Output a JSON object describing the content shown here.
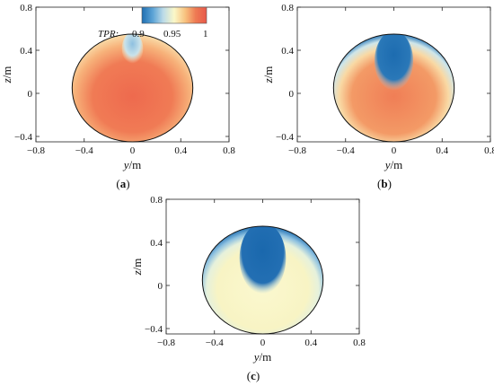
{
  "colorbar": {
    "title": "TPR:",
    "tick_labels": [
      "0.9",
      "0.95",
      "1"
    ],
    "colors": [
      "#1f6fb2",
      "#5da4d6",
      "#bcdbe8",
      "#fbf8c8",
      "#f8c27f",
      "#ee7b53",
      "#e8584a"
    ]
  },
  "chart_data": [
    {
      "type": "heatmap",
      "panel_label": "(a)",
      "xlabel": "y/m",
      "ylabel": "z/m",
      "xlim": [
        -0.8,
        0.8
      ],
      "ylim": [
        -0.45,
        0.8
      ],
      "x_ticks": [
        "−0.8",
        "−0.4",
        "0",
        "0.4",
        "0.8"
      ],
      "y_ticks": [
        "0.8",
        "0.4",
        "0",
        "−0.4"
      ],
      "circle": {
        "cx": 0,
        "cy": 0.05,
        "r": 0.5
      },
      "tpr_field": {
        "core": 0.99,
        "wall_ring": 0.965,
        "top_bubble": 0.92
      }
    },
    {
      "type": "heatmap",
      "panel_label": "(b)",
      "xlabel": "y/m",
      "ylabel": "z/m",
      "xlim": [
        -0.8,
        0.8
      ],
      "ylim": [
        -0.45,
        0.8
      ],
      "x_ticks": [
        "−0.8",
        "−0.4",
        "0",
        "0.4",
        "0.8"
      ],
      "y_ticks": [
        "0.8",
        "0.4",
        "0",
        "−0.4"
      ],
      "circle": {
        "cx": 0,
        "cy": 0.05,
        "r": 0.5
      },
      "tpr_field": {
        "core": 0.985,
        "wall_ring": 0.9,
        "top_bubble": 0.89
      }
    },
    {
      "type": "heatmap",
      "panel_label": "(c)",
      "xlabel": "y/m",
      "ylabel": "z/m",
      "xlim": [
        -0.8,
        0.8
      ],
      "ylim": [
        -0.45,
        0.8
      ],
      "x_ticks": [
        "−0.8",
        "−0.4",
        "0",
        "0.4",
        "0.8"
      ],
      "y_ticks": [
        "0.8",
        "0.4",
        "0",
        "−0.4"
      ],
      "circle": {
        "cx": 0,
        "cy": 0.05,
        "r": 0.5
      },
      "tpr_field": {
        "core": 0.95,
        "wall_ring": 0.89,
        "top_bubble": 0.89
      }
    }
  ]
}
